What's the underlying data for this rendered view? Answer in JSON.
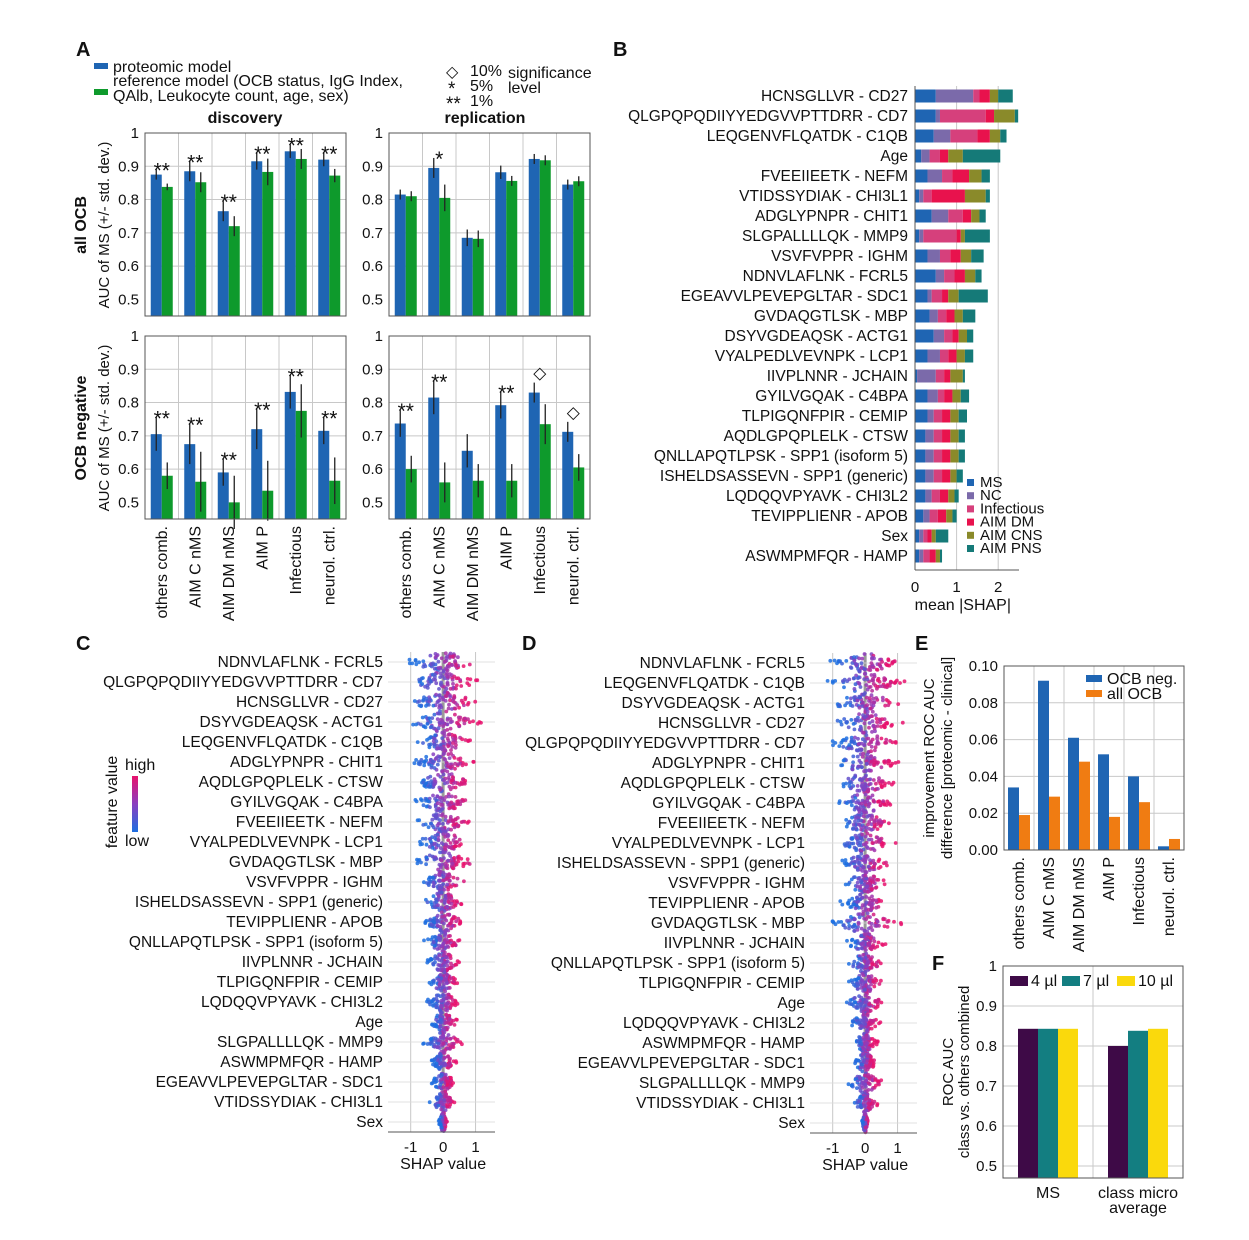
{
  "colors": {
    "proteomic": "#1f65b3",
    "reference": "#0e9a2c",
    "ms": "#1f65b3",
    "nc": "#7b6aaa",
    "infectious": "#d6407c",
    "aim_dm": "#e8124d",
    "aim_cns": "#8a8a2a",
    "aim_pns": "#157a78",
    "ocb_neg": "#1f65b3",
    "all_ocb": "#f07c12",
    "v4": "#3e0a47",
    "v7": "#137e81",
    "v10": "#fad90c"
  },
  "panel_labels": {
    "a": "A",
    "b": "B",
    "c": "C",
    "d": "D",
    "e": "E",
    "f": "F"
  },
  "chart_data": [
    {
      "id": "A",
      "type": "bar",
      "legend": {
        "proteomic": "proteomic model",
        "reference_1": "reference model (OCB status, IgG Index,",
        "reference_2": "QAlb, Leukocyte count, age, sex)",
        "sig_1": "10%",
        "sig_5": "5%",
        "sig_1pct": "1%",
        "sig_label_1": "significance",
        "sig_label_2": "level",
        "sym_diamond": "◇",
        "sym_star": "*",
        "sym_2star": "**"
      },
      "col_titles": [
        "discovery",
        "replication"
      ],
      "row_labels": [
        "all OCB",
        "OCB negative"
      ],
      "ylabel": "AUC of MS (+/- std. dev.)",
      "categories": [
        "others comb.",
        "AIM C nMS",
        "AIM DM nMS",
        "AIM P",
        "Infectious",
        "neurol. ctrl."
      ],
      "yticks": [
        "0.5",
        "0.6",
        "0.7",
        "0.8",
        "0.9",
        "1"
      ],
      "subplots": [
        {
          "row": 0,
          "col": 0,
          "ylim": [
            0.45,
            1.0
          ],
          "proteomic": [
            0.875,
            0.885,
            0.765,
            0.915,
            0.945,
            0.92
          ],
          "proteomic_err": [
            0.015,
            0.03,
            0.03,
            0.025,
            0.02,
            0.02
          ],
          "reference": [
            0.838,
            0.852,
            0.72,
            0.883,
            0.922,
            0.872
          ],
          "reference_err": [
            0.01,
            0.03,
            0.03,
            0.04,
            0.03,
            0.02
          ],
          "sig": [
            "**",
            "**",
            "**",
            "**",
            "**",
            "**"
          ]
        },
        {
          "row": 0,
          "col": 1,
          "ylim": [
            0.45,
            1.0
          ],
          "proteomic": [
            0.815,
            0.895,
            0.685,
            0.882,
            0.922,
            0.845
          ],
          "proteomic_err": [
            0.015,
            0.03,
            0.025,
            0.02,
            0.015,
            0.015
          ],
          "reference": [
            0.81,
            0.805,
            0.682,
            0.856,
            0.918,
            0.855
          ],
          "reference_err": [
            0.015,
            0.04,
            0.025,
            0.015,
            0.015,
            0.015
          ],
          "sig": [
            "",
            "*",
            "",
            "",
            "",
            ""
          ]
        },
        {
          "row": 1,
          "col": 0,
          "ylim": [
            0.45,
            1.0
          ],
          "proteomic": [
            0.705,
            0.675,
            0.59,
            0.72,
            0.832,
            0.715
          ],
          "proteomic_err": [
            0.05,
            0.06,
            0.04,
            0.06,
            0.05,
            0.04
          ],
          "reference": [
            0.58,
            0.562,
            0.5,
            0.535,
            0.775,
            0.565
          ],
          "reference_err": [
            0.04,
            0.09,
            0.08,
            0.09,
            0.08,
            0.07
          ],
          "sig": [
            "**",
            "**",
            "**",
            "**",
            "**",
            "**"
          ]
        },
        {
          "row": 1,
          "col": 1,
          "ylim": [
            0.45,
            1.0
          ],
          "proteomic": [
            0.737,
            0.815,
            0.655,
            0.792,
            0.83,
            0.712
          ],
          "proteomic_err": [
            0.04,
            0.05,
            0.05,
            0.04,
            0.03,
            0.03
          ],
          "reference": [
            0.6,
            0.56,
            0.565,
            0.565,
            0.735,
            0.605
          ],
          "reference_err": [
            0.04,
            0.06,
            0.05,
            0.05,
            0.06,
            0.04
          ],
          "sig": [
            "**",
            "**",
            "",
            "**",
            "◇",
            "◇"
          ]
        }
      ]
    },
    {
      "id": "B",
      "type": "bar",
      "orientation": "horizontal",
      "stacked": true,
      "xlabel": "mean |SHAP|",
      "xticks": [
        "0",
        "1",
        "2"
      ],
      "xlim": [
        0,
        2.5
      ],
      "series_names": [
        "MS",
        "NC",
        "Infectious",
        "AIM DM",
        "AIM CNS",
        "AIM PNS"
      ],
      "features": [
        "HCNSGLLVR - CD27",
        "QLGPQPQDIIYYEDGVVPTTDRR - CD7",
        "LEQGENVFLQATDK - C1QB",
        "Age",
        "FVEEIIEETK - NEFM",
        "VTIDSSYDIAK - CHI3L1",
        "ADGLYPNPR - CHIT1",
        "SLGPALLLLQK - MMP9",
        "VSVFVPPR - IGHM",
        "NDNVLAFLNK - FCRL5",
        "EGEAVVLPEVEPGLTAR - SDC1",
        "GVDAQGTLSK - MBP",
        "DSYVGDEAQSK - ACTG1",
        "VYALPEDLVEVNPK - LCP1",
        "IIVPLNNR - JCHAIN",
        "GYILVGQAK - C4BPA",
        "TLPIGQNFPIR - CEMIP",
        "AQDLGPQPLELK - CTSW",
        "QNLLAPQTLPSK - SPP1 (isoform 5)",
        "ISHELDSASSEVN - SPP1 (generic)",
        "LQDQQVPYAVK - CHI3L2",
        "TEVIPPLIENR - APOB",
        "Sex",
        "ASWMPMFQR - HAMP"
      ],
      "values": [
        [
          0.5,
          0.9,
          0.15,
          0.25,
          0.2,
          0.35
        ],
        [
          0.5,
          0.1,
          1.1,
          0.2,
          0.5,
          0.08
        ],
        [
          0.45,
          0.4,
          0.65,
          0.3,
          0.25,
          0.15
        ],
        [
          0.15,
          0.2,
          0.25,
          0.2,
          0.35,
          0.9
        ],
        [
          0.3,
          0.35,
          0.25,
          0.4,
          0.3,
          0.2
        ],
        [
          0.1,
          0.1,
          0.2,
          0.8,
          0.5,
          0.1
        ],
        [
          0.4,
          0.4,
          0.35,
          0.2,
          0.2,
          0.15
        ],
        [
          0.1,
          0.1,
          0.8,
          0.1,
          0.1,
          0.6
        ],
        [
          0.3,
          0.3,
          0.25,
          0.25,
          0.25,
          0.3
        ],
        [
          0.5,
          0.2,
          0.25,
          0.25,
          0.25,
          0.15
        ],
        [
          0.3,
          0.1,
          0.25,
          0.15,
          0.25,
          0.7
        ],
        [
          0.35,
          0.2,
          0.2,
          0.2,
          0.2,
          0.3
        ],
        [
          0.45,
          0.25,
          0.2,
          0.15,
          0.2,
          0.15
        ],
        [
          0.3,
          0.3,
          0.2,
          0.2,
          0.2,
          0.2
        ],
        [
          0.05,
          0.45,
          0.2,
          0.15,
          0.3,
          0.05
        ],
        [
          0.3,
          0.25,
          0.15,
          0.2,
          0.2,
          0.2
        ],
        [
          0.3,
          0.15,
          0.2,
          0.2,
          0.2,
          0.2
        ],
        [
          0.25,
          0.2,
          0.2,
          0.2,
          0.2,
          0.15
        ],
        [
          0.25,
          0.2,
          0.2,
          0.2,
          0.2,
          0.15
        ],
        [
          0.25,
          0.2,
          0.2,
          0.2,
          0.15,
          0.15
        ],
        [
          0.25,
          0.15,
          0.2,
          0.2,
          0.15,
          0.1
        ],
        [
          0.2,
          0.15,
          0.2,
          0.2,
          0.15,
          0.1
        ],
        [
          0.1,
          0.1,
          0.1,
          0.1,
          0.1,
          0.3
        ],
        [
          0.1,
          0.1,
          0.15,
          0.15,
          0.1,
          0.05
        ]
      ]
    },
    {
      "id": "C",
      "type": "scatter",
      "subtype": "beeswarm",
      "xlabel": "SHAP value",
      "xticks": [
        "-1",
        "0",
        "1"
      ],
      "xlim": [
        -1.7,
        1.6
      ],
      "colorbar": {
        "title": "feature value",
        "high": "high",
        "low": "low"
      },
      "features": [
        "NDNVLAFLNK - FCRL5",
        "QLGPQPQDIIYYEDGVVPTTDRR - CD7",
        "HCNSGLLVR - CD27",
        "DSYVGDEAQSK - ACTG1",
        "LEQGENVFLQATDK - C1QB",
        "ADGLYPNPR - CHIT1",
        "AQDLGPQPLELK - CTSW",
        "GYILVGQAK - C4BPA",
        "FVEEIIEETK - NEFM",
        "VYALPEDLVEVNPK - LCP1",
        "GVDAQGTLSK - MBP",
        "VSVFVPPR - IGHM",
        "ISHELDSASSEVN - SPP1 (generic)",
        "TEVIPPLIENR - APOB",
        "QNLLAPQTLPSK - SPP1 (isoform 5)",
        "IIVPLNNR - JCHAIN",
        "TLPIGQNFPIR - CEMIP",
        "LQDQQVPYAVK - CHI3L2",
        "Age",
        "SLGPALLLLQK - MMP9",
        "ASWMPMFQR - HAMP",
        "EGEAVVLPEVEPGLTAR - SDC1",
        "VTIDSSYDIAK - CHI3L1",
        "Sex"
      ],
      "spread": [
        1.3,
        1.3,
        1.35,
        1.35,
        1.0,
        1.2,
        1.1,
        1.05,
        1.0,
        1.0,
        1.2,
        0.9,
        0.8,
        0.8,
        0.7,
        0.65,
        0.6,
        0.6,
        0.55,
        0.7,
        0.45,
        0.45,
        0.45,
        0.15
      ]
    },
    {
      "id": "D",
      "type": "scatter",
      "subtype": "beeswarm",
      "xlabel": "SHAP value",
      "xticks": [
        "-1",
        "0",
        "1"
      ],
      "xlim": [
        -1.7,
        1.6
      ],
      "features": [
        "NDNVLAFLNK - FCRL5",
        "LEQGENVFLQATDK - C1QB",
        "DSYVGDEAQSK - ACTG1",
        "HCNSGLLVR - CD27",
        "QLGPQPQDIIYYEDGVVPTTDRR - CD7",
        "ADGLYPNPR - CHIT1",
        "AQDLGPQPLELK - CTSW",
        "GYILVGQAK - C4BPA",
        "FVEEIIEETK - NEFM",
        "VYALPEDLVEVNPK - LCP1",
        "ISHELDSASSEVN - SPP1 (generic)",
        "VSVFVPPR - IGHM",
        "TEVIPPLIENR - APOB",
        "GVDAQGTLSK - MBP",
        "IIVPLNNR - JCHAIN",
        "QNLLAPQTLPSK - SPP1 (isoform 5)",
        "TLPIGQNFPIR - CEMIP",
        "Age",
        "LQDQQVPYAVK - CHI3L2",
        "ASWMPMFQR - HAMP",
        "EGEAVVLPEVEPGLTAR - SDC1",
        "SLGPALLLLQK - MMP9",
        "VTIDSSYDIAK - CHI3L1",
        "Sex"
      ],
      "spread": [
        1.3,
        1.35,
        1.35,
        1.3,
        1.25,
        1.2,
        1.1,
        1.05,
        1.0,
        1.0,
        1.0,
        0.9,
        0.85,
        1.3,
        0.7,
        0.65,
        0.6,
        0.7,
        0.55,
        0.5,
        0.5,
        0.7,
        0.45,
        0.12
      ]
    },
    {
      "id": "E",
      "type": "bar",
      "ylabel_1": "improvement ROC AUC",
      "ylabel_2": "difference [proteomic - clinical]",
      "categories": [
        "others comb.",
        "AIM C nMS",
        "AIM DM nMS",
        "AIM P",
        "Infectious",
        "neurol. ctrl."
      ],
      "ylim": [
        0,
        0.1
      ],
      "yticks": [
        "0.00",
        "0.02",
        "0.04",
        "0.06",
        "0.08",
        "0.10"
      ],
      "series": [
        {
          "name": "OCB neg.",
          "values": [
            0.034,
            0.092,
            0.061,
            0.052,
            0.04,
            0.002
          ]
        },
        {
          "name": "all OCB",
          "values": [
            0.019,
            0.029,
            0.048,
            0.018,
            0.026,
            0.006
          ]
        }
      ]
    },
    {
      "id": "F",
      "type": "bar",
      "ylabel_1": "ROC AUC",
      "ylabel_2": "class vs. others combined",
      "categories": [
        "MS",
        "class micro average"
      ],
      "category_lines": [
        [
          "MS"
        ],
        [
          "class micro",
          "average"
        ]
      ],
      "ylim": [
        0.47,
        1.0
      ],
      "yticks": [
        "0.5",
        "0.6",
        "0.7",
        "0.8",
        "0.9",
        "1"
      ],
      "series": [
        {
          "name": "4 µl",
          "values": [
            0.843,
            0.8
          ]
        },
        {
          "name": "7 µl",
          "values": [
            0.843,
            0.838
          ]
        },
        {
          "name": "10 µl",
          "values": [
            0.843,
            0.843
          ]
        }
      ]
    }
  ]
}
